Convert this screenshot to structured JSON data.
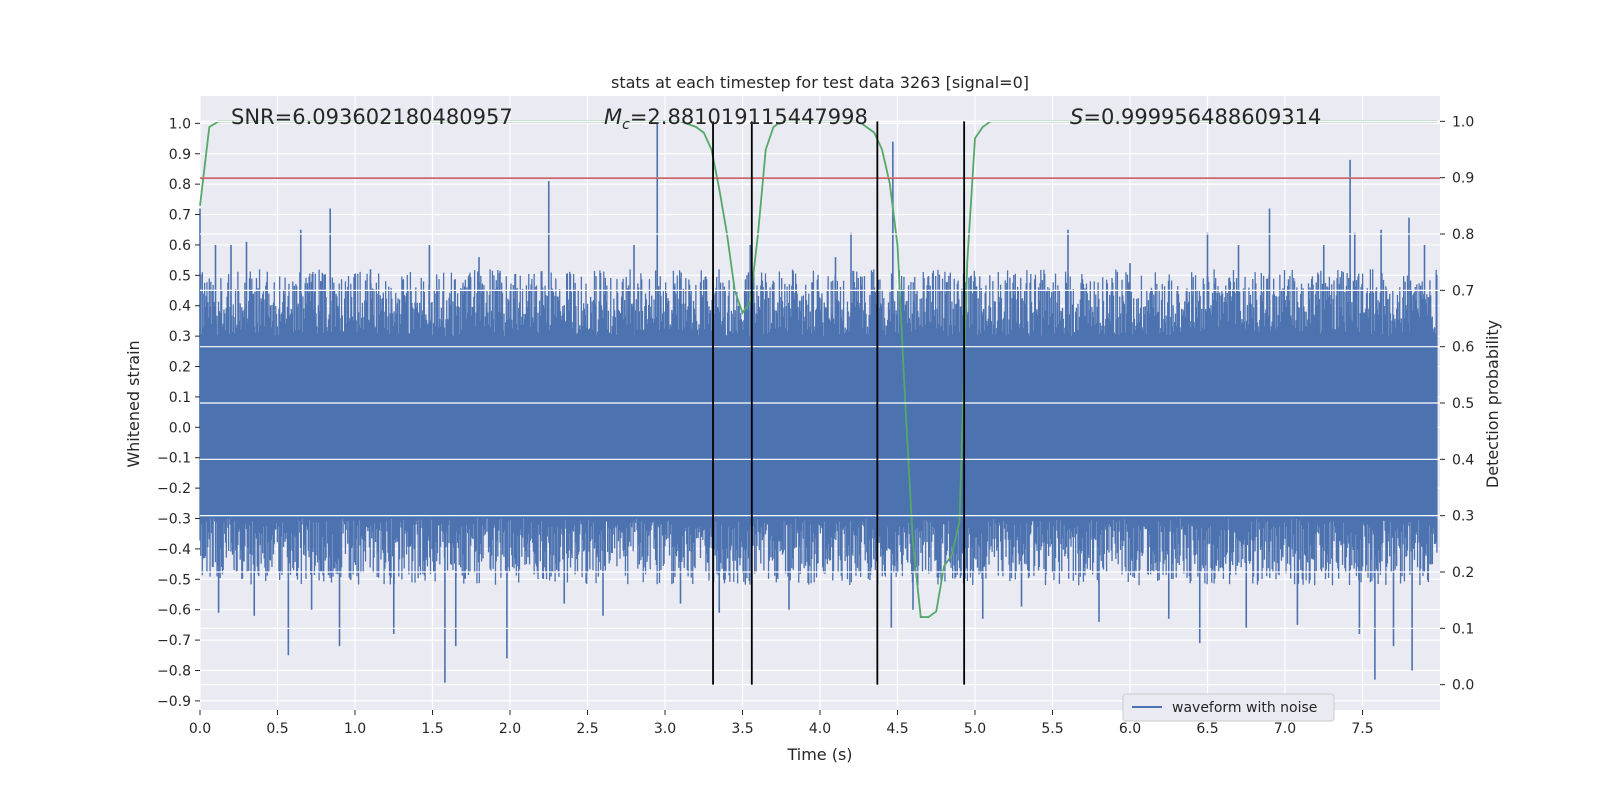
{
  "chart_data": {
    "type": "line",
    "title": "stats at each timestep for test data 3263 [signal=0]",
    "xlabel": "Time (s)",
    "ylabel": "Whitened strain",
    "y2label": "Detection probability",
    "xlim": [
      0.0,
      8.0
    ],
    "ylim": [
      -0.93,
      1.09
    ],
    "y2lim": [
      -0.045,
      1.045
    ],
    "xticks": [
      0.0,
      0.5,
      1.0,
      1.5,
      2.0,
      2.5,
      3.0,
      3.5,
      4.0,
      4.5,
      5.0,
      5.5,
      6.0,
      6.5,
      7.0,
      7.5
    ],
    "xtick_labels": [
      "0.0",
      "0.5",
      "1.0",
      "1.5",
      "2.0",
      "2.5",
      "3.0",
      "3.5",
      "4.0",
      "4.5",
      "5.0",
      "5.5",
      "6.0",
      "6.5",
      "7.0",
      "7.5"
    ],
    "yticks": [
      1.0,
      0.9,
      0.8,
      0.7,
      0.6,
      0.5,
      0.4,
      0.3,
      0.2,
      0.1,
      0.0,
      -0.1,
      -0.2,
      -0.3,
      -0.4,
      -0.5,
      -0.6,
      -0.7,
      -0.8,
      -0.9
    ],
    "ytick_labels": [
      "1.0",
      "0.9",
      "0.8",
      "0.7",
      "0.6",
      "0.5",
      "0.4",
      "0.3",
      "0.2",
      "0.1",
      "0.0",
      "−0.1",
      "−0.2",
      "−0.3",
      "−0.4",
      "−0.5",
      "−0.6",
      "−0.7",
      "−0.8",
      "−0.9"
    ],
    "y2ticks": [
      1.0,
      0.9,
      0.8,
      0.7,
      0.6,
      0.5,
      0.4,
      0.3,
      0.2,
      0.1,
      0.0
    ],
    "y2tick_labels": [
      "1.0",
      "0.9",
      "0.8",
      "0.7",
      "0.6",
      "0.5",
      "0.4",
      "0.3",
      "0.2",
      "0.1",
      "0.0"
    ],
    "grid": true,
    "legend": {
      "placement": "lower-right",
      "entries": [
        "waveform with noise"
      ]
    },
    "annotations": {
      "snr": "SNR=6.093602180480957",
      "mc_symbol": "M",
      "mc_sub": "c",
      "mc_value": "=2.881019115447998",
      "s_symbol": "S",
      "s_value": "=0.999956488609314"
    },
    "series": [
      {
        "name": "waveform with noise",
        "axis": "left",
        "style": "noise",
        "t_range": [
          0.0,
          7.98
        ],
        "typical_envelope": [
          -0.3,
          0.3
        ],
        "spikes": [
          {
            "t": 0.0,
            "y": 0.72
          },
          {
            "t": 0.03,
            "y": -0.43
          },
          {
            "t": 0.1,
            "y": 0.6
          },
          {
            "t": 0.12,
            "y": -0.61
          },
          {
            "t": 0.2,
            "y": 0.6
          },
          {
            "t": 0.3,
            "y": 0.61
          },
          {
            "t": 0.35,
            "y": -0.62
          },
          {
            "t": 0.57,
            "y": -0.75
          },
          {
            "t": 0.65,
            "y": 0.65
          },
          {
            "t": 0.72,
            "y": -0.6
          },
          {
            "t": 0.84,
            "y": 0.72
          },
          {
            "t": 0.9,
            "y": -0.72
          },
          {
            "t": 1.1,
            "y": 0.52
          },
          {
            "t": 1.25,
            "y": -0.68
          },
          {
            "t": 1.48,
            "y": 0.6
          },
          {
            "t": 1.58,
            "y": -0.84
          },
          {
            "t": 1.65,
            "y": -0.72
          },
          {
            "t": 1.8,
            "y": 0.56
          },
          {
            "t": 1.98,
            "y": -0.76
          },
          {
            "t": 2.25,
            "y": 0.81
          },
          {
            "t": 2.35,
            "y": -0.58
          },
          {
            "t": 2.6,
            "y": -0.62
          },
          {
            "t": 2.8,
            "y": 0.6
          },
          {
            "t": 2.95,
            "y": 1.0
          },
          {
            "t": 3.1,
            "y": -0.58
          },
          {
            "t": 3.35,
            "y": -0.61
          },
          {
            "t": 3.55,
            "y": 0.6
          },
          {
            "t": 3.8,
            "y": -0.6
          },
          {
            "t": 4.1,
            "y": 0.56
          },
          {
            "t": 4.2,
            "y": 0.64
          },
          {
            "t": 4.47,
            "y": 0.94
          },
          {
            "t": 4.46,
            "y": -0.66
          },
          {
            "t": 4.6,
            "y": -0.6
          },
          {
            "t": 5.05,
            "y": -0.63
          },
          {
            "t": 5.3,
            "y": -0.59
          },
          {
            "t": 5.6,
            "y": 0.65
          },
          {
            "t": 5.8,
            "y": -0.64
          },
          {
            "t": 6.0,
            "y": 0.54
          },
          {
            "t": 6.25,
            "y": -0.63
          },
          {
            "t": 6.45,
            "y": -0.71
          },
          {
            "t": 6.5,
            "y": 0.64
          },
          {
            "t": 6.7,
            "y": 0.6
          },
          {
            "t": 6.75,
            "y": -0.66
          },
          {
            "t": 6.9,
            "y": 0.72
          },
          {
            "t": 7.08,
            "y": -0.65
          },
          {
            "t": 7.25,
            "y": 0.6
          },
          {
            "t": 7.42,
            "y": 0.88
          },
          {
            "t": 7.45,
            "y": 0.64
          },
          {
            "t": 7.48,
            "y": -0.68
          },
          {
            "t": 7.58,
            "y": -0.83
          },
          {
            "t": 7.62,
            "y": 0.65
          },
          {
            "t": 7.7,
            "y": -0.72
          },
          {
            "t": 7.8,
            "y": 0.69
          },
          {
            "t": 7.82,
            "y": -0.8
          },
          {
            "t": 7.9,
            "y": 0.6
          },
          {
            "t": 7.95,
            "y": -0.45
          }
        ]
      },
      {
        "axis": "right",
        "color": "#55a868",
        "x": [
          0.0,
          0.06,
          0.12,
          0.2,
          3.1,
          3.2,
          3.25,
          3.3,
          3.35,
          3.4,
          3.45,
          3.5,
          3.55,
          3.6,
          3.65,
          3.7,
          3.75,
          3.8,
          4.25,
          4.3,
          4.35,
          4.4,
          4.45,
          4.5,
          4.55,
          4.6,
          4.65,
          4.7,
          4.75,
          4.8,
          4.85,
          4.9,
          4.95,
          5.0,
          5.05,
          5.1,
          5.2,
          7.98
        ],
        "y": [
          0.85,
          0.99,
          1.0,
          1.0,
          1.0,
          0.99,
          0.98,
          0.95,
          0.88,
          0.8,
          0.7,
          0.66,
          0.68,
          0.8,
          0.95,
          0.99,
          1.0,
          1.0,
          1.0,
          0.99,
          0.98,
          0.95,
          0.89,
          0.78,
          0.5,
          0.25,
          0.12,
          0.12,
          0.13,
          0.21,
          0.23,
          0.29,
          0.75,
          0.97,
          0.99,
          1.0,
          1.0,
          1.0
        ]
      }
    ],
    "threshold": {
      "axis": "left",
      "y": 0.82,
      "color": "#c44e52"
    },
    "vertical_lines": [
      3.31,
      3.56,
      4.37,
      4.93
    ],
    "colors": {
      "background": "#eaeaf2",
      "grid": "#ffffff",
      "waveform": "#4c72b0",
      "probability": "#55a868",
      "threshold": "#c44e52",
      "vlines": "#000000"
    }
  }
}
